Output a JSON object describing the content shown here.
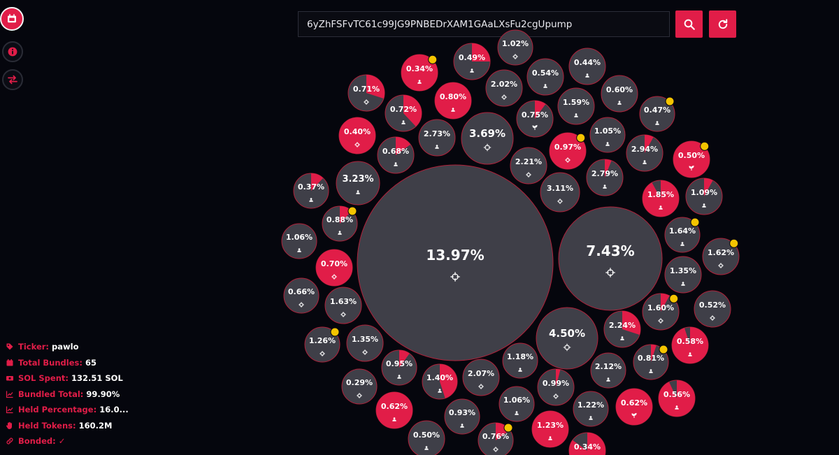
{
  "search": {
    "value": "6yZhFSFvTC61c99JG9PNBEDrXAM1GAaLXsFu2cgUpump"
  },
  "stats": [
    {
      "icon": "tag-icon",
      "label": "Ticker:",
      "value": "pawlo"
    },
    {
      "icon": "calendar-icon",
      "label": "Total Bundles:",
      "value": "65"
    },
    {
      "icon": "wallet-icon",
      "label": "SOL Spent:",
      "value": "132.51 SOL"
    },
    {
      "icon": "chart-icon",
      "label": "Bundled Total:",
      "value": "99.90%"
    },
    {
      "icon": "chart-icon",
      "label": "Held Percentage:",
      "value": "16.0..."
    },
    {
      "icon": "hand-icon",
      "label": "Held Tokens:",
      "value": "160.2M"
    },
    {
      "icon": "link-icon",
      "label": "Bonded:",
      "value": "✓"
    }
  ],
  "colors": {
    "accent": "#e11d48",
    "bubble": "#3f3f48",
    "badge": "#f5c400",
    "background": "#05060d"
  },
  "bubbles": [
    {
      "label": "13.97%",
      "icon": "crosshair-icon",
      "fill": 0,
      "badge": false
    },
    {
      "label": "7.43%",
      "icon": "crosshair-icon",
      "fill": 0,
      "badge": false
    },
    {
      "label": "4.50%",
      "icon": "crosshair-icon",
      "fill": 0,
      "badge": false
    },
    {
      "label": "3.69%",
      "icon": "crosshair-icon",
      "fill": 0,
      "badge": false
    },
    {
      "label": "3.23%",
      "icon": "user-icon",
      "fill": 0,
      "badge": false
    },
    {
      "label": "3.11%",
      "icon": "crosshair-icon",
      "fill": 0,
      "badge": false
    },
    {
      "label": "2.94%",
      "icon": "user-icon",
      "fill": 0.08,
      "badge": false
    },
    {
      "label": "2.79%",
      "icon": "user-icon",
      "fill": 0.06,
      "badge": false
    },
    {
      "label": "2.73%",
      "icon": "user-icon",
      "fill": 0,
      "badge": false
    },
    {
      "label": "2.24%",
      "icon": "user-icon",
      "fill": 0.3,
      "badge": false
    },
    {
      "label": "2.21%",
      "icon": "crosshair-icon",
      "fill": 0,
      "badge": false
    },
    {
      "label": "2.12%",
      "icon": "user-icon",
      "fill": 0,
      "badge": false
    },
    {
      "label": "2.07%",
      "icon": "crosshair-icon",
      "fill": 0,
      "badge": false
    },
    {
      "label": "2.02%",
      "icon": "crosshair-icon",
      "fill": 0,
      "badge": false
    },
    {
      "label": "1.85%",
      "icon": "user-icon",
      "fill": 0.92,
      "badge": false
    },
    {
      "label": "1.64%",
      "icon": "user-icon",
      "fill": 0,
      "badge": true
    },
    {
      "label": "1.63%",
      "icon": "crosshair-icon",
      "fill": 0,
      "badge": false
    },
    {
      "label": "1.62%",
      "icon": "crosshair-icon",
      "fill": 0,
      "badge": true
    },
    {
      "label": "1.60%",
      "icon": "crosshair-icon",
      "fill": 0.08,
      "badge": true
    },
    {
      "label": "1.59%",
      "icon": "user-icon",
      "fill": 0,
      "badge": false
    },
    {
      "label": "1.40%",
      "icon": "user-icon",
      "fill": 0.45,
      "badge": false
    },
    {
      "label": "1.35%",
      "icon": "user-icon",
      "fill": 0,
      "badge": false
    },
    {
      "label": "1.35%",
      "icon": "crosshair-icon",
      "fill": 0,
      "badge": false
    },
    {
      "label": "1.26%",
      "icon": "crosshair-icon",
      "fill": 0,
      "badge": true
    },
    {
      "label": "1.23%",
      "icon": "user-icon",
      "fill": 1,
      "badge": false
    },
    {
      "label": "1.22%",
      "icon": "user-icon",
      "fill": 0,
      "badge": false
    },
    {
      "label": "1.18%",
      "icon": "user-icon",
      "fill": 0,
      "badge": false
    },
    {
      "label": "1.09%",
      "icon": "user-icon",
      "fill": 0.08,
      "badge": false
    },
    {
      "label": "1.06%",
      "icon": "user-icon",
      "fill": 0,
      "badge": false
    },
    {
      "label": "1.06%",
      "icon": "user-icon",
      "fill": 0,
      "badge": false
    },
    {
      "label": "1.05%",
      "icon": "user-icon",
      "fill": 0,
      "badge": false
    },
    {
      "label": "1.02%",
      "icon": "crosshair-icon",
      "fill": 0,
      "badge": false
    },
    {
      "label": "0.99%",
      "icon": "crosshair-icon",
      "fill": 0.04,
      "badge": false
    },
    {
      "label": "0.97%",
      "icon": "crosshair-icon",
      "fill": 1,
      "badge": true
    },
    {
      "label": "0.95%",
      "icon": "user-icon",
      "fill": 0.1,
      "badge": false
    },
    {
      "label": "0.93%",
      "icon": "user-icon",
      "fill": 0,
      "badge": false
    },
    {
      "label": "0.88%",
      "icon": "user-icon",
      "fill": 0.12,
      "badge": true
    },
    {
      "label": "0.81%",
      "icon": "user-icon",
      "fill": 0.05,
      "badge": true
    },
    {
      "label": "0.80%",
      "icon": "user-icon",
      "fill": 1,
      "badge": false
    },
    {
      "label": "0.76%",
      "icon": "crosshair-icon",
      "fill": 0.15,
      "badge": true
    },
    {
      "label": "0.75%",
      "icon": "plant-icon",
      "fill": 0.1,
      "badge": false
    },
    {
      "label": "0.72%",
      "icon": "user-icon",
      "fill": 0.38,
      "badge": false
    },
    {
      "label": "0.71%",
      "icon": "crosshair-icon",
      "fill": 0.3,
      "badge": false
    },
    {
      "label": "0.70%",
      "icon": "crosshair-icon",
      "fill": 1,
      "badge": false
    },
    {
      "label": "0.68%",
      "icon": "user-icon",
      "fill": 0.15,
      "badge": false
    },
    {
      "label": "0.66%",
      "icon": "crosshair-icon",
      "fill": 0,
      "badge": false
    },
    {
      "label": "0.62%",
      "icon": "user-icon",
      "fill": 1,
      "badge": false
    },
    {
      "label": "0.62%",
      "icon": "plant-icon",
      "fill": 1,
      "badge": false
    },
    {
      "label": "0.60%",
      "icon": "user-icon",
      "fill": 0,
      "badge": false
    },
    {
      "label": "0.58%",
      "icon": "user-icon",
      "fill": 0.95,
      "badge": false
    },
    {
      "label": "0.56%",
      "icon": "user-icon",
      "fill": 0.93,
      "badge": false
    },
    {
      "label": "0.54%",
      "icon": "user-icon",
      "fill": 0,
      "badge": false
    },
    {
      "label": "0.52%",
      "icon": "crosshair-icon",
      "fill": 0,
      "badge": false
    },
    {
      "label": "0.50%",
      "icon": "plant-icon",
      "fill": 1,
      "badge": true
    },
    {
      "label": "0.50%",
      "icon": "user-icon",
      "fill": 0,
      "badge": false
    },
    {
      "label": "0.49%",
      "icon": "user-icon",
      "fill": 0.25,
      "badge": false
    },
    {
      "label": "0.47%",
      "icon": "user-icon",
      "fill": 0,
      "badge": true
    },
    {
      "label": "0.44%",
      "icon": "user-icon",
      "fill": 0,
      "badge": false
    },
    {
      "label": "0.40%",
      "icon": "crosshair-icon",
      "fill": 1,
      "badge": false
    },
    {
      "label": "0.37%",
      "icon": "user-icon",
      "fill": 0.12,
      "badge": false
    },
    {
      "label": "0.34%",
      "icon": "user-icon",
      "fill": 1,
      "badge": true
    },
    {
      "label": "0.34%",
      "icon": "user-icon",
      "fill": 0.85,
      "badge": false
    },
    {
      "label": "0.29%",
      "icon": "crosshair-icon",
      "fill": 0,
      "badge": false
    }
  ]
}
